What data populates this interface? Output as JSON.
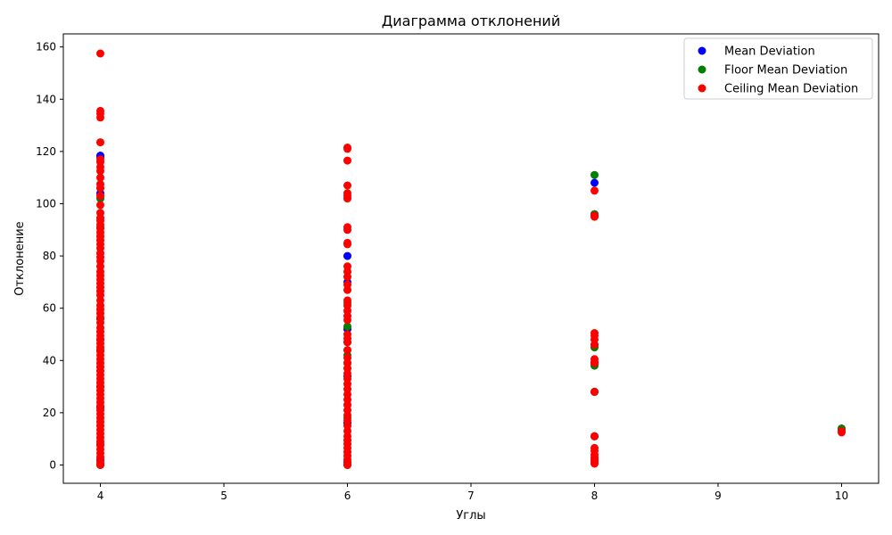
{
  "chart_data": {
    "type": "scatter",
    "title": "Диаграмма отклонений",
    "xlabel": "Углы",
    "ylabel": "Отклонение",
    "xlim": [
      3.7,
      10.3
    ],
    "ylim": [
      -7,
      165
    ],
    "xticks": [
      4,
      5,
      6,
      7,
      8,
      9,
      10
    ],
    "yticks": [
      0,
      20,
      40,
      60,
      80,
      100,
      120,
      140,
      160
    ],
    "legend_position": "top-right",
    "grid": false,
    "series": [
      {
        "name": "Mean Deviation",
        "color": "#0000ff",
        "points": [
          [
            4,
            118.4
          ],
          [
            4,
            117.9
          ],
          [
            4,
            104
          ],
          [
            4,
            56
          ],
          [
            4,
            48
          ],
          [
            4,
            22
          ],
          [
            4,
            2
          ],
          [
            4,
            0.2
          ],
          [
            6,
            80
          ],
          [
            6,
            70
          ],
          [
            6,
            52
          ],
          [
            6,
            34
          ],
          [
            6,
            16
          ],
          [
            6,
            1
          ],
          [
            8,
            108
          ],
          [
            8,
            96
          ],
          [
            8,
            46
          ],
          [
            8,
            39
          ],
          [
            8,
            28
          ],
          [
            8,
            11
          ],
          [
            8,
            2
          ],
          [
            10,
            13.5
          ]
        ]
      },
      {
        "name": "Floor Mean Deviation",
        "color": "#008000",
        "points": [
          [
            4,
            106
          ],
          [
            4,
            102
          ],
          [
            4,
            91
          ],
          [
            4,
            56
          ],
          [
            4,
            44
          ],
          [
            4,
            30
          ],
          [
            4,
            8
          ],
          [
            4,
            0
          ],
          [
            6,
            62
          ],
          [
            6,
            53
          ],
          [
            6,
            47
          ],
          [
            6,
            42
          ],
          [
            6,
            39
          ],
          [
            6,
            18
          ],
          [
            6,
            0
          ],
          [
            8,
            111
          ],
          [
            8,
            96
          ],
          [
            8,
            45
          ],
          [
            8,
            38
          ],
          [
            8,
            28
          ],
          [
            8,
            11
          ],
          [
            8,
            1
          ],
          [
            10,
            14
          ]
        ]
      },
      {
        "name": "Ceiling Mean Deviation",
        "color": "#ff0000",
        "points": [
          [
            4,
            157.5
          ],
          [
            4,
            135.5
          ],
          [
            4,
            134.5
          ],
          [
            4,
            133
          ],
          [
            4,
            123.5
          ],
          [
            4,
            117
          ],
          [
            4,
            116
          ],
          [
            4,
            114
          ],
          [
            4,
            112.5
          ],
          [
            4,
            110
          ],
          [
            4,
            107.5
          ],
          [
            4,
            106
          ],
          [
            4,
            103
          ],
          [
            4,
            99.5
          ],
          [
            4,
            96.5
          ],
          [
            4,
            94.5
          ],
          [
            4,
            93.5
          ],
          [
            4,
            92
          ],
          [
            4,
            90.5
          ],
          [
            4,
            89
          ],
          [
            4,
            87.5
          ],
          [
            4,
            86
          ],
          [
            4,
            84.5
          ],
          [
            4,
            83
          ],
          [
            4,
            81
          ],
          [
            4,
            79.5
          ],
          [
            4,
            78
          ],
          [
            4,
            76
          ],
          [
            4,
            74
          ],
          [
            4,
            72.5
          ],
          [
            4,
            71
          ],
          [
            4,
            69.5
          ],
          [
            4,
            68
          ],
          [
            4,
            66.5
          ],
          [
            4,
            65
          ],
          [
            4,
            63
          ],
          [
            4,
            61
          ],
          [
            4,
            59.5
          ],
          [
            4,
            58
          ],
          [
            4,
            56.5
          ],
          [
            4,
            54.5
          ],
          [
            4,
            52.5
          ],
          [
            4,
            51
          ],
          [
            4,
            49.5
          ],
          [
            4,
            48
          ],
          [
            4,
            46.5
          ],
          [
            4,
            45
          ],
          [
            4,
            43.5
          ],
          [
            4,
            42
          ],
          [
            4,
            40.5
          ],
          [
            4,
            39
          ],
          [
            4,
            37.5
          ],
          [
            4,
            36
          ],
          [
            4,
            34.5
          ],
          [
            4,
            33
          ],
          [
            4,
            31.5
          ],
          [
            4,
            30
          ],
          [
            4,
            28.5
          ],
          [
            4,
            27
          ],
          [
            4,
            25.5
          ],
          [
            4,
            24
          ],
          [
            4,
            22.5
          ],
          [
            4,
            21
          ],
          [
            4,
            19.5
          ],
          [
            4,
            18
          ],
          [
            4,
            16.5
          ],
          [
            4,
            15
          ],
          [
            4,
            13.5
          ],
          [
            4,
            12
          ],
          [
            4,
            10.5
          ],
          [
            4,
            9
          ],
          [
            4,
            7.5
          ],
          [
            4,
            6
          ],
          [
            4,
            4.5
          ],
          [
            4,
            3
          ],
          [
            4,
            1.5
          ],
          [
            4,
            0.5
          ],
          [
            4,
            0
          ],
          [
            6,
            121.5
          ],
          [
            6,
            121
          ],
          [
            6,
            116.5
          ],
          [
            6,
            107
          ],
          [
            6,
            104
          ],
          [
            6,
            103
          ],
          [
            6,
            102
          ],
          [
            6,
            91
          ],
          [
            6,
            90
          ],
          [
            6,
            85
          ],
          [
            6,
            84.5
          ],
          [
            6,
            76
          ],
          [
            6,
            74
          ],
          [
            6,
            72
          ],
          [
            6,
            69
          ],
          [
            6,
            67
          ],
          [
            6,
            63
          ],
          [
            6,
            61
          ],
          [
            6,
            59
          ],
          [
            6,
            57
          ],
          [
            6,
            55.5
          ],
          [
            6,
            50
          ],
          [
            6,
            48.5
          ],
          [
            6,
            47
          ],
          [
            6,
            44
          ],
          [
            6,
            41
          ],
          [
            6,
            39
          ],
          [
            6,
            37
          ],
          [
            6,
            35
          ],
          [
            6,
            33
          ],
          [
            6,
            31
          ],
          [
            6,
            29
          ],
          [
            6,
            27
          ],
          [
            6,
            25
          ],
          [
            6,
            23
          ],
          [
            6,
            21
          ],
          [
            6,
            19
          ],
          [
            6,
            17
          ],
          [
            6,
            15
          ],
          [
            6,
            13
          ],
          [
            6,
            11
          ],
          [
            6,
            9.5
          ],
          [
            6,
            8
          ],
          [
            6,
            6.5
          ],
          [
            6,
            5
          ],
          [
            6,
            3.5
          ],
          [
            6,
            2
          ],
          [
            6,
            1
          ],
          [
            6,
            0
          ],
          [
            8,
            105
          ],
          [
            8,
            95.5
          ],
          [
            8,
            95
          ],
          [
            8,
            50.5
          ],
          [
            8,
            49.5
          ],
          [
            8,
            48
          ],
          [
            8,
            46
          ],
          [
            8,
            40.5
          ],
          [
            8,
            39.5
          ],
          [
            8,
            39
          ],
          [
            8,
            28
          ],
          [
            8,
            11
          ],
          [
            8,
            6.5
          ],
          [
            8,
            5.5
          ],
          [
            8,
            4
          ],
          [
            8,
            3
          ],
          [
            8,
            2
          ],
          [
            8,
            1
          ],
          [
            8,
            0.5
          ],
          [
            10,
            13
          ],
          [
            10,
            12.5
          ]
        ]
      }
    ]
  }
}
